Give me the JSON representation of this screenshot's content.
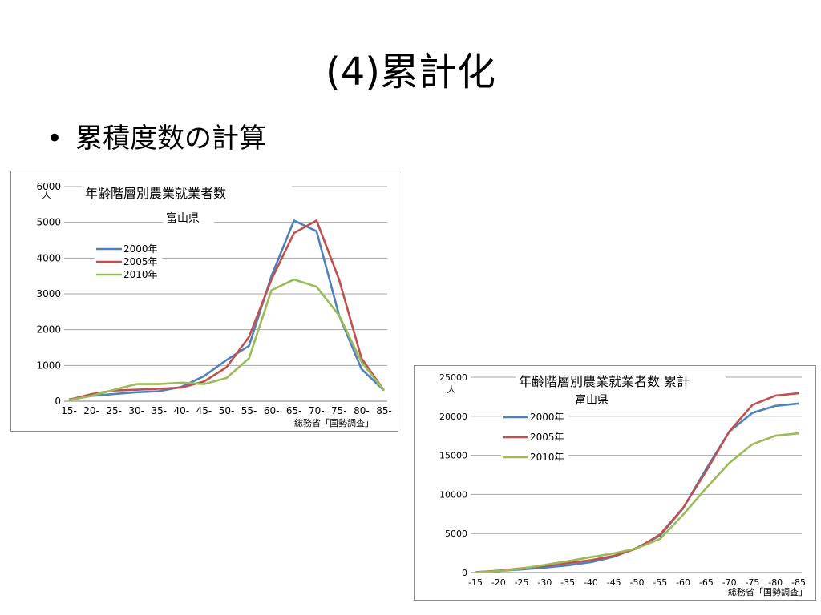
{
  "slide": {
    "title": "(4)累計化",
    "bullet": "累積度数の計算"
  },
  "colors": {
    "s2000": "#4f81bd",
    "s2005": "#c0504d",
    "s2010": "#9bbb59",
    "grid": "#a6a6a6"
  },
  "chart_data": [
    {
      "type": "line",
      "title": "年齢階層別農業就業者数",
      "subtitle": "富山県",
      "ylabel": "人",
      "source": "総務省「国勢調査」",
      "ylim": [
        0,
        6000
      ],
      "yticks": [
        "0",
        "1000",
        "2000",
        "3000",
        "4000",
        "5000",
        "6000"
      ],
      "categories": [
        "15-",
        "20-",
        "25-",
        "30-",
        "35-",
        "40-",
        "45-",
        "50-",
        "55-",
        "60-",
        "65-",
        "70-",
        "75-",
        "80-",
        "85-"
      ],
      "legend_position": "upper-left",
      "grid": true,
      "series": [
        {
          "name": "2000年",
          "color": "#4f81bd",
          "values": [
            50,
            150,
            200,
            250,
            280,
            400,
            700,
            1150,
            1550,
            3500,
            5050,
            4750,
            2400,
            900,
            300
          ]
        },
        {
          "name": "2005年",
          "color": "#c0504d",
          "values": [
            40,
            200,
            300,
            320,
            350,
            380,
            550,
            950,
            1800,
            3400,
            4700,
            5050,
            3400,
            1200,
            300
          ]
        },
        {
          "name": "2010年",
          "color": "#9bbb59",
          "values": [
            30,
            150,
            320,
            480,
            480,
            520,
            480,
            650,
            1200,
            3100,
            3400,
            3200,
            2400,
            1100,
            300
          ]
        }
      ]
    },
    {
      "type": "line",
      "title": "年齢階層別農業就業者数 累計",
      "subtitle": "富山県",
      "ylabel": "人",
      "source": "総務省「国勢調査」",
      "ylim": [
        0,
        25000
      ],
      "yticks": [
        "0",
        "5000",
        "10000",
        "15000",
        "20000",
        "25000"
      ],
      "categories": [
        "-15",
        "-20",
        "-25",
        "-30",
        "-35",
        "-40",
        "-45",
        "-50",
        "-55",
        "-60",
        "-65",
        "-70",
        "-75",
        "-80",
        "-85"
      ],
      "legend_position": "upper-left",
      "grid": true,
      "series": [
        {
          "name": "2000年",
          "color": "#4f81bd",
          "values": [
            50,
            200,
            400,
            650,
            930,
            1330,
            2030,
            3180,
            4730,
            8230,
            13280,
            18030,
            20430,
            21330,
            21630
          ]
        },
        {
          "name": "2005年",
          "color": "#c0504d",
          "values": [
            40,
            240,
            540,
            860,
            1210,
            1590,
            2140,
            3090,
            4890,
            8290,
            12990,
            18040,
            21440,
            22640,
            22940
          ]
        },
        {
          "name": "2010年",
          "color": "#9bbb59",
          "values": [
            30,
            180,
            500,
            980,
            1460,
            1980,
            2460,
            3110,
            4310,
            7410,
            10810,
            14010,
            16410,
            17510,
            17810
          ]
        }
      ]
    }
  ]
}
